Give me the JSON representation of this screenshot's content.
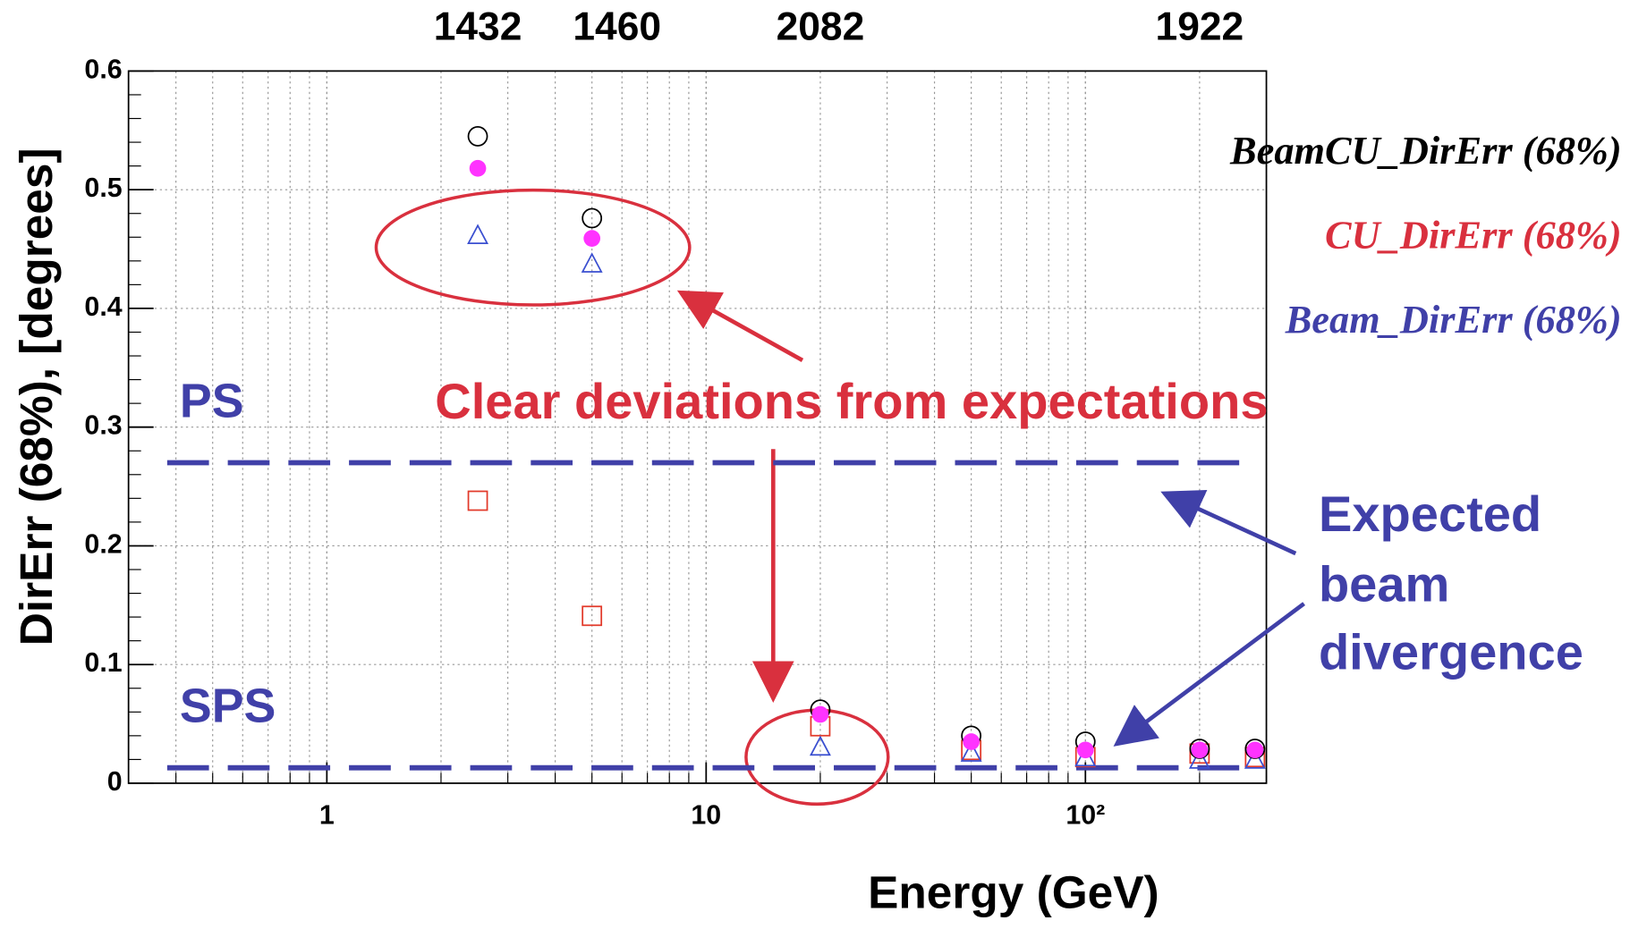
{
  "chart_data": {
    "type": "scatter",
    "xlabel": "Energy (GeV)",
    "ylabel": "DirErr (68%), [degrees]",
    "log_x": true,
    "grid": true,
    "xlim": [
      0.3,
      300
    ],
    "ylim": [
      0,
      0.6
    ],
    "xticks": [
      1,
      10,
      {
        "value": 100,
        "label": "10²"
      }
    ],
    "yticks": [
      0,
      0.1,
      0.2,
      0.3,
      0.4,
      0.5,
      0.6
    ],
    "x": [
      2.5,
      5,
      20,
      50,
      100,
      200,
      280
    ],
    "series": [
      {
        "name": "BeamCU_DirErr (68%)",
        "color": "#000000",
        "marker": "open-circle",
        "values": [
          0.545,
          0.476,
          0.062,
          0.04,
          0.035,
          0.029,
          0.029
        ]
      },
      {
        "name": "CU_DirErr (68%)",
        "color": "#e23a2a",
        "marker": "open-square",
        "values": [
          0.238,
          0.141,
          0.048,
          0.028,
          0.022,
          0.025,
          0.022
        ]
      },
      {
        "name": "Beam_DirErr (68%)",
        "color": "#3a4fd0",
        "marker": "open-triangle",
        "values": [
          0.461,
          0.437,
          0.03,
          0.025,
          0.021,
          0.019,
          0.019
        ]
      },
      {
        "color": "#ff33ff",
        "marker": "filled-circle",
        "values": [
          0.518,
          0.459,
          0.058,
          0.035,
          0.028,
          0.028,
          0.028
        ]
      }
    ],
    "legend_colors": [
      "#000000",
      "#d9303e",
      "#4040a8"
    ],
    "legend_position": "upper right",
    "reference_lines": [
      {
        "label": "PS",
        "value": 0.27,
        "color": "#4040a8"
      },
      {
        "label": "SPS",
        "value": 0.013,
        "color": "#4040a8"
      }
    ],
    "top_labels": [
      {
        "text": "1432",
        "x": 2.5
      },
      {
        "text": "1460",
        "x": 5
      },
      {
        "text": "2082",
        "x": 20
      },
      {
        "text": "1922",
        "x": 200
      }
    ],
    "annotations": [
      {
        "text": "Clear deviations from expectations",
        "color": "#d9303e"
      },
      {
        "lines": [
          "Expected",
          "beam",
          "divergence"
        ],
        "color": "#4040a8"
      }
    ]
  }
}
